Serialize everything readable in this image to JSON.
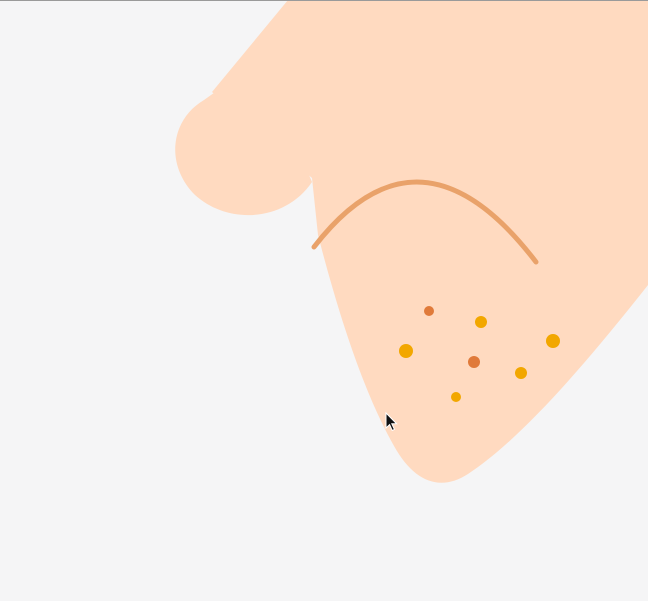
{
  "background_color": "#f5f5f6",
  "shapes": {
    "skin_color": "#ffdac0",
    "curve_color": "#e9a26a"
  },
  "dots": {
    "dark_color": "#e07a3a",
    "light_color": "#f2a700"
  },
  "cursor": {
    "icon": "arrow-cursor-icon"
  }
}
